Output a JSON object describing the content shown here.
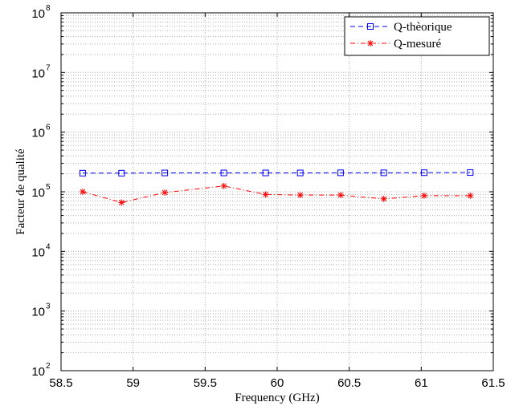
{
  "chart_data": {
    "type": "line",
    "xlabel": "Frequency (GHz)",
    "ylabel": "Facteur de qualité",
    "xlim": [
      58.5,
      61.5
    ],
    "ylim": [
      100,
      100000000
    ],
    "yscale": "log",
    "x_ticks": [
      58.5,
      59,
      59.5,
      60,
      60.5,
      61,
      61.5
    ],
    "x_tick_labels": [
      "58.5",
      "59",
      "59.5",
      "60",
      "60.5",
      "61",
      "61.5"
    ],
    "y_ticks": [
      {
        "base": "10",
        "exp": "2",
        "value": 100
      },
      {
        "base": "10",
        "exp": "3",
        "value": 1000
      },
      {
        "base": "10",
        "exp": "4",
        "value": 10000
      },
      {
        "base": "10",
        "exp": "5",
        "value": 100000
      },
      {
        "base": "10",
        "exp": "6",
        "value": 1000000
      },
      {
        "base": "10",
        "exp": "7",
        "value": 10000000
      },
      {
        "base": "10",
        "exp": "8",
        "value": 100000000
      }
    ],
    "grid": true,
    "legend_position": "top-right",
    "series": [
      {
        "name": "Q-thèorique",
        "color": "#0000ff",
        "marker": "square",
        "line_style": "dashed",
        "x": [
          58.65,
          58.92,
          59.22,
          59.63,
          59.92,
          60.16,
          60.44,
          60.74,
          61.02,
          61.34
        ],
        "y": [
          205000,
          205000,
          207000,
          207000,
          207000,
          207000,
          208000,
          208000,
          209000,
          210000
        ]
      },
      {
        "name": "Q-mesuré",
        "color": "#ff0000",
        "marker": "star",
        "line_style": "dashdot",
        "x": [
          58.65,
          58.92,
          59.22,
          59.63,
          59.92,
          60.16,
          60.44,
          60.74,
          61.02,
          61.34
        ],
        "y": [
          100000,
          66000,
          97000,
          125000,
          90000,
          88000,
          88000,
          76000,
          86000,
          86000
        ]
      }
    ]
  }
}
